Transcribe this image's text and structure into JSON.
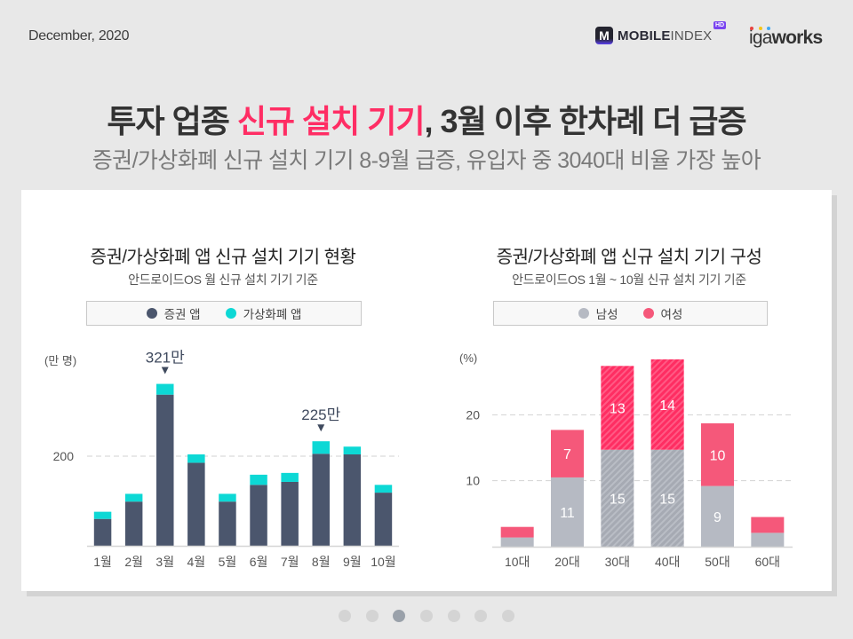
{
  "header": {
    "date": "December, 2020",
    "mobileindex_logo": {
      "icon_letter": "M",
      "bold": "MOBILE",
      "light": "INDEX",
      "badge": "HD"
    },
    "igaworks_logo": {
      "light": "iga",
      "bold": "works",
      "dot_colors": [
        "#e8433f",
        "#f5c518",
        "#3fa9f5"
      ]
    }
  },
  "headline": {
    "title_pre": "투자 업종 ",
    "title_highlight": "신규 설치 기기",
    "title_post": ", 3월 이후 한차례 더 급증",
    "highlight_color": "#ff2d64",
    "subtitle": "증권/가상화폐 신규 설치 기기 8-9월 급증, 유입자 중 3040대 비율 가장 높아"
  },
  "pagination": {
    "total_pages": 7,
    "current_page": 3
  },
  "chart_data": [
    {
      "type": "bar",
      "stacked": true,
      "title": "증권/가상화폐 앱 신규 설치 기기 현황",
      "subtitle": "안드로이드OS 월 신규 설치 기기 기준",
      "ylabel": "(만 명)",
      "xlabel": "",
      "categories": [
        "1월",
        "2월",
        "3월",
        "4월",
        "5월",
        "6월",
        "7월",
        "8월",
        "9월",
        "10월"
      ],
      "series": [
        {
          "name": "증권 앱",
          "color": "#4b566d",
          "values": [
            95,
            124,
            303,
            189,
            124,
            152,
            157,
            204,
            203,
            139
          ]
        },
        {
          "name": "가상화폐 앱",
          "color": "#0dd8d5",
          "values": [
            12,
            13,
            18,
            14,
            13,
            17,
            15,
            21,
            13,
            13
          ]
        }
      ],
      "annotations": [
        {
          "category_index": 2,
          "text": "321만"
        },
        {
          "category_index": 7,
          "text": "225만"
        }
      ],
      "yticks": [
        200
      ],
      "ytick_labels": [
        "200"
      ],
      "ylim": [
        50,
        330
      ],
      "grid": true,
      "legend": "top"
    },
    {
      "type": "bar",
      "stacked": true,
      "title": "증권/가상화폐 앱 신규 설치 기기 구성",
      "subtitle": "안드로이드OS 1월 ~ 10월 신규 설치 기기 기준",
      "ylabel": "(%)",
      "xlabel": "",
      "categories": [
        "10대",
        "20대",
        "30대",
        "40대",
        "50대",
        "60대"
      ],
      "series": [
        {
          "name": "남성",
          "color": "#b6bac3",
          "highlight_color": "#a6aab3",
          "values": [
            1.4,
            10.5,
            14.7,
            14.7,
            9.2,
            2.1
          ],
          "labels": [
            null,
            "11",
            "15",
            "15",
            "9",
            null
          ]
        },
        {
          "name": "여성",
          "color": "#f5587a",
          "highlight_color": "#ff2d62",
          "values": [
            1.6,
            7.2,
            12.7,
            13.7,
            9.5,
            2.4
          ],
          "labels": [
            null,
            "7",
            "13",
            "14",
            "10",
            null
          ]
        }
      ],
      "highlighted_categories": [
        2,
        3
      ],
      "yticks": [
        10,
        20
      ],
      "ytick_labels": [
        "10",
        "20"
      ],
      "ylim": [
        0,
        30
      ],
      "grid": true,
      "legend": "top"
    }
  ]
}
